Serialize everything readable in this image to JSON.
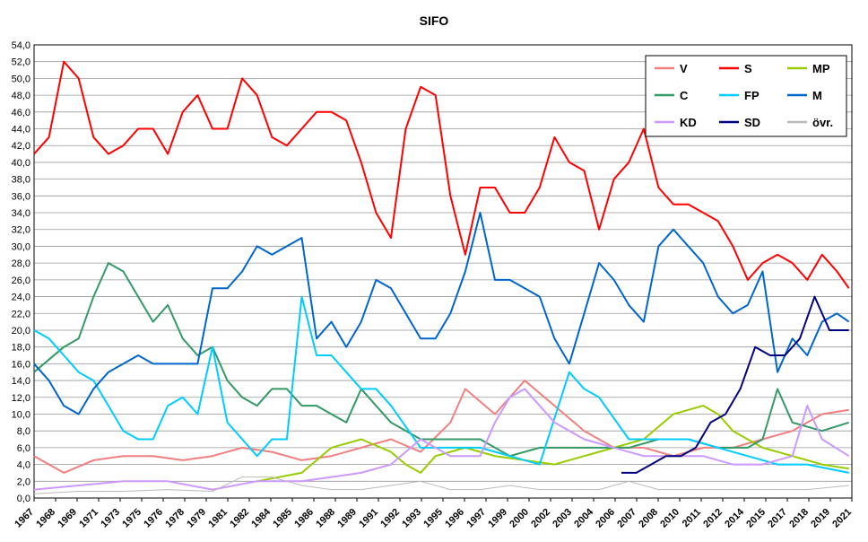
{
  "chart_data": {
    "type": "line",
    "title": "SIFO",
    "xlabel": "",
    "ylabel": "",
    "ylim": [
      0,
      54
    ],
    "y_ticks": [
      "0,0",
      "2,0",
      "4,0",
      "6,0",
      "8,0",
      "10,0",
      "12,0",
      "14,0",
      "16,0",
      "18,0",
      "20,0",
      "22,0",
      "24,0",
      "26,0",
      "28,0",
      "30,0",
      "32,0",
      "34,0",
      "36,0",
      "38,0",
      "40,0",
      "42,0",
      "44,0",
      "46,0",
      "48,0",
      "50,0",
      "52,0",
      "54,0"
    ],
    "x_ticks": [
      "1967",
      "1968",
      "1969",
      "1971",
      "1973",
      "1975",
      "1976",
      "1978",
      "1979",
      "1981",
      "1982",
      "1984",
      "1985",
      "1986",
      "1988",
      "1989",
      "1991",
      "1992",
      "1993",
      "1995",
      "1996",
      "1997",
      "1999",
      "2000",
      "2002",
      "2003",
      "2004",
      "2006",
      "2007",
      "2008",
      "2010",
      "2011",
      "2012",
      "2014",
      "2015",
      "2017",
      "2018",
      "2019",
      "2021"
    ],
    "xlim": [
      1967,
      2022
    ],
    "grid": true,
    "legend_position": "top-right",
    "series": [
      {
        "name": "V",
        "color": "#f08080",
        "x": [
          1967,
          1969,
          1971,
          1973,
          1975,
          1977,
          1979,
          1981,
          1983,
          1985,
          1987,
          1989,
          1991,
          1993,
          1995,
          1996,
          1998,
          2000,
          2002,
          2004,
          2006,
          2008,
          2010,
          2012,
          2014,
          2016,
          2018,
          2020,
          2021.8
        ],
        "y": [
          5.0,
          3.0,
          4.5,
          5.0,
          5.0,
          4.5,
          5.0,
          6.0,
          5.5,
          4.5,
          5.0,
          6.0,
          7.0,
          5.5,
          9.0,
          13.0,
          10.0,
          14.0,
          11.0,
          8.0,
          6.0,
          6.0,
          5.0,
          6.0,
          6.0,
          7.0,
          8.0,
          10.0,
          10.5
        ]
      },
      {
        "name": "S",
        "color": "#ff0000",
        "x": [
          1967,
          1968,
          1969,
          1970,
          1971,
          1972,
          1973,
          1974,
          1975,
          1976,
          1977,
          1978,
          1979,
          1980,
          1981,
          1982,
          1983,
          1984,
          1985,
          1986,
          1987,
          1988,
          1989,
          1990,
          1991,
          1992,
          1993,
          1994,
          1995,
          1996,
          1997,
          1998,
          1999,
          2000,
          2001,
          2002,
          2003,
          2004,
          2005,
          2006,
          2007,
          2008,
          2009,
          2010,
          2011,
          2012,
          2013,
          2014,
          2015,
          2016,
          2017,
          2018,
          2019,
          2020,
          2021,
          2021.8
        ],
        "y": [
          41,
          43,
          52,
          50,
          43,
          41,
          42,
          44,
          44,
          41,
          46,
          48,
          44,
          44,
          50,
          48,
          43,
          42,
          44,
          46,
          46,
          45,
          40,
          34,
          31,
          44,
          49,
          48,
          36,
          29,
          37,
          37,
          34,
          34,
          37,
          43,
          40,
          39,
          32,
          38,
          40,
          44,
          37,
          35,
          35,
          34,
          33,
          30,
          26,
          28,
          29,
          28,
          26,
          29,
          27,
          25
        ]
      },
      {
        "name": "MP",
        "color": "#99cc00",
        "x": [
          1982,
          1985,
          1987,
          1989,
          1991,
          1992,
          1993,
          1994,
          1996,
          1998,
          2000,
          2002,
          2004,
          2006,
          2008,
          2010,
          2012,
          2013,
          2014,
          2016,
          2018,
          2020,
          2021.8
        ],
        "y": [
          2.0,
          3.0,
          6.0,
          7.0,
          5.5,
          4.0,
          3.0,
          5.0,
          6.0,
          5.0,
          4.5,
          4.0,
          5.0,
          6.0,
          7.0,
          10.0,
          11.0,
          10.0,
          8.0,
          6.0,
          5.0,
          4.0,
          3.5
        ]
      },
      {
        "name": "C",
        "color": "#339966",
        "x": [
          1967,
          1969,
          1970,
          1971,
          1972,
          1973,
          1974,
          1975,
          1976,
          1977,
          1978,
          1979,
          1980,
          1981,
          1982,
          1983,
          1984,
          1985,
          1986,
          1987,
          1988,
          1989,
          1991,
          1993,
          1995,
          1997,
          1999,
          2001,
          2003,
          2005,
          2007,
          2009,
          2011,
          2013,
          2015,
          2016,
          2017,
          2018,
          2020,
          2021.8
        ],
        "y": [
          15,
          18,
          19,
          24,
          28,
          27,
          24,
          21,
          23,
          19,
          17,
          18,
          14,
          12,
          11,
          13,
          13,
          11,
          11,
          10,
          9,
          13,
          9,
          7,
          7,
          7,
          5,
          6,
          6,
          6,
          6,
          7,
          7,
          6,
          6,
          7,
          13,
          9,
          8,
          9
        ]
      },
      {
        "name": "FP",
        "color": "#00ccff",
        "x": [
          1967,
          1968,
          1969,
          1970,
          1971,
          1972,
          1973,
          1974,
          1975,
          1976,
          1977,
          1978,
          1979,
          1980,
          1981,
          1982,
          1983,
          1984,
          1985,
          1986,
          1987,
          1988,
          1989,
          1990,
          1991,
          1993,
          1995,
          1997,
          1999,
          2001,
          2003,
          2004,
          2005,
          2007,
          2009,
          2011,
          2013,
          2015,
          2017,
          2019,
          2021.8
        ],
        "y": [
          20,
          19,
          17,
          15,
          14,
          11,
          8,
          7,
          7,
          11,
          12,
          10,
          18,
          9,
          7,
          5,
          7,
          7,
          24,
          17,
          17,
          15,
          13,
          13,
          11,
          6,
          6,
          6,
          5,
          4,
          15,
          13,
          12,
          7,
          7,
          7,
          6,
          5,
          4,
          4,
          3
        ]
      },
      {
        "name": "M",
        "color": "#0066cc",
        "x": [
          1967,
          1968,
          1969,
          1970,
          1971,
          1972,
          1973,
          1974,
          1975,
          1976,
          1977,
          1978,
          1979,
          1980,
          1981,
          1982,
          1983,
          1984,
          1985,
          1986,
          1987,
          1988,
          1989,
          1990,
          1991,
          1992,
          1993,
          1994,
          1995,
          1996,
          1997,
          1998,
          1999,
          2000,
          2001,
          2002,
          2003,
          2004,
          2005,
          2006,
          2007,
          2008,
          2009,
          2010,
          2011,
          2012,
          2013,
          2014,
          2015,
          2016,
          2017,
          2018,
          2019,
          2020,
          2021,
          2021.8
        ],
        "y": [
          16,
          14,
          11,
          10,
          13,
          15,
          16,
          17,
          16,
          16,
          16,
          16,
          25,
          25,
          27,
          30,
          29,
          30,
          31,
          19,
          21,
          18,
          21,
          26,
          25,
          22,
          19,
          19,
          22,
          27,
          34,
          26,
          26,
          25,
          24,
          19,
          16,
          22,
          28,
          26,
          23,
          21,
          30,
          32,
          30,
          28,
          24,
          22,
          23,
          27,
          15,
          19,
          17,
          21,
          22,
          21
        ]
      },
      {
        "name": "KD",
        "color": "#cc99ff",
        "x": [
          1967,
          1970,
          1973,
          1976,
          1979,
          1982,
          1985,
          1987,
          1989,
          1991,
          1993,
          1995,
          1997,
          1998,
          1999,
          2000,
          2001,
          2002,
          2004,
          2006,
          2008,
          2010,
          2012,
          2014,
          2016,
          2018,
          2019,
          2020,
          2021.8
        ],
        "y": [
          1.0,
          1.5,
          2.0,
          2.0,
          1.0,
          2.0,
          2.0,
          2.5,
          3.0,
          4.0,
          7.0,
          5.0,
          5.0,
          9.0,
          12.0,
          13.0,
          11.0,
          9.0,
          7.0,
          6.0,
          5.0,
          5.0,
          5.0,
          4.0,
          4.0,
          5.0,
          11.0,
          7.0,
          5.0
        ]
      },
      {
        "name": "SD",
        "color": "#000080",
        "x": [
          2006.5,
          2007.5,
          2008.5,
          2009.5,
          2010.5,
          2011.5,
          2012.5,
          2013.5,
          2014.5,
          2015.5,
          2016.5,
          2017.5,
          2018.5,
          2019.5,
          2020.5,
          2021.8
        ],
        "y": [
          3.0,
          3.0,
          4.0,
          5.0,
          5.0,
          6.0,
          9.0,
          10.0,
          13.0,
          18.0,
          17.0,
          17.0,
          19.0,
          24.0,
          20.0,
          20.0
        ]
      },
      {
        "name": "övr.",
        "color": "#bbbbbb",
        "x": [
          1967,
          1970,
          1973,
          1976,
          1979,
          1981,
          1983,
          1985,
          1987,
          1989,
          1991,
          1993,
          1995,
          1997,
          1999,
          2001,
          2003,
          2005,
          2007,
          2009,
          2011,
          2013,
          2015,
          2017,
          2019,
          2021.8
        ],
        "y": [
          0.5,
          0.8,
          0.8,
          1.0,
          0.8,
          2.5,
          2.5,
          1.5,
          1.0,
          1.0,
          1.5,
          2.0,
          1.0,
          1.0,
          1.5,
          1.0,
          1.0,
          1.0,
          2.0,
          1.0,
          1.0,
          1.0,
          1.0,
          1.0,
          1.0,
          1.5
        ]
      }
    ]
  }
}
